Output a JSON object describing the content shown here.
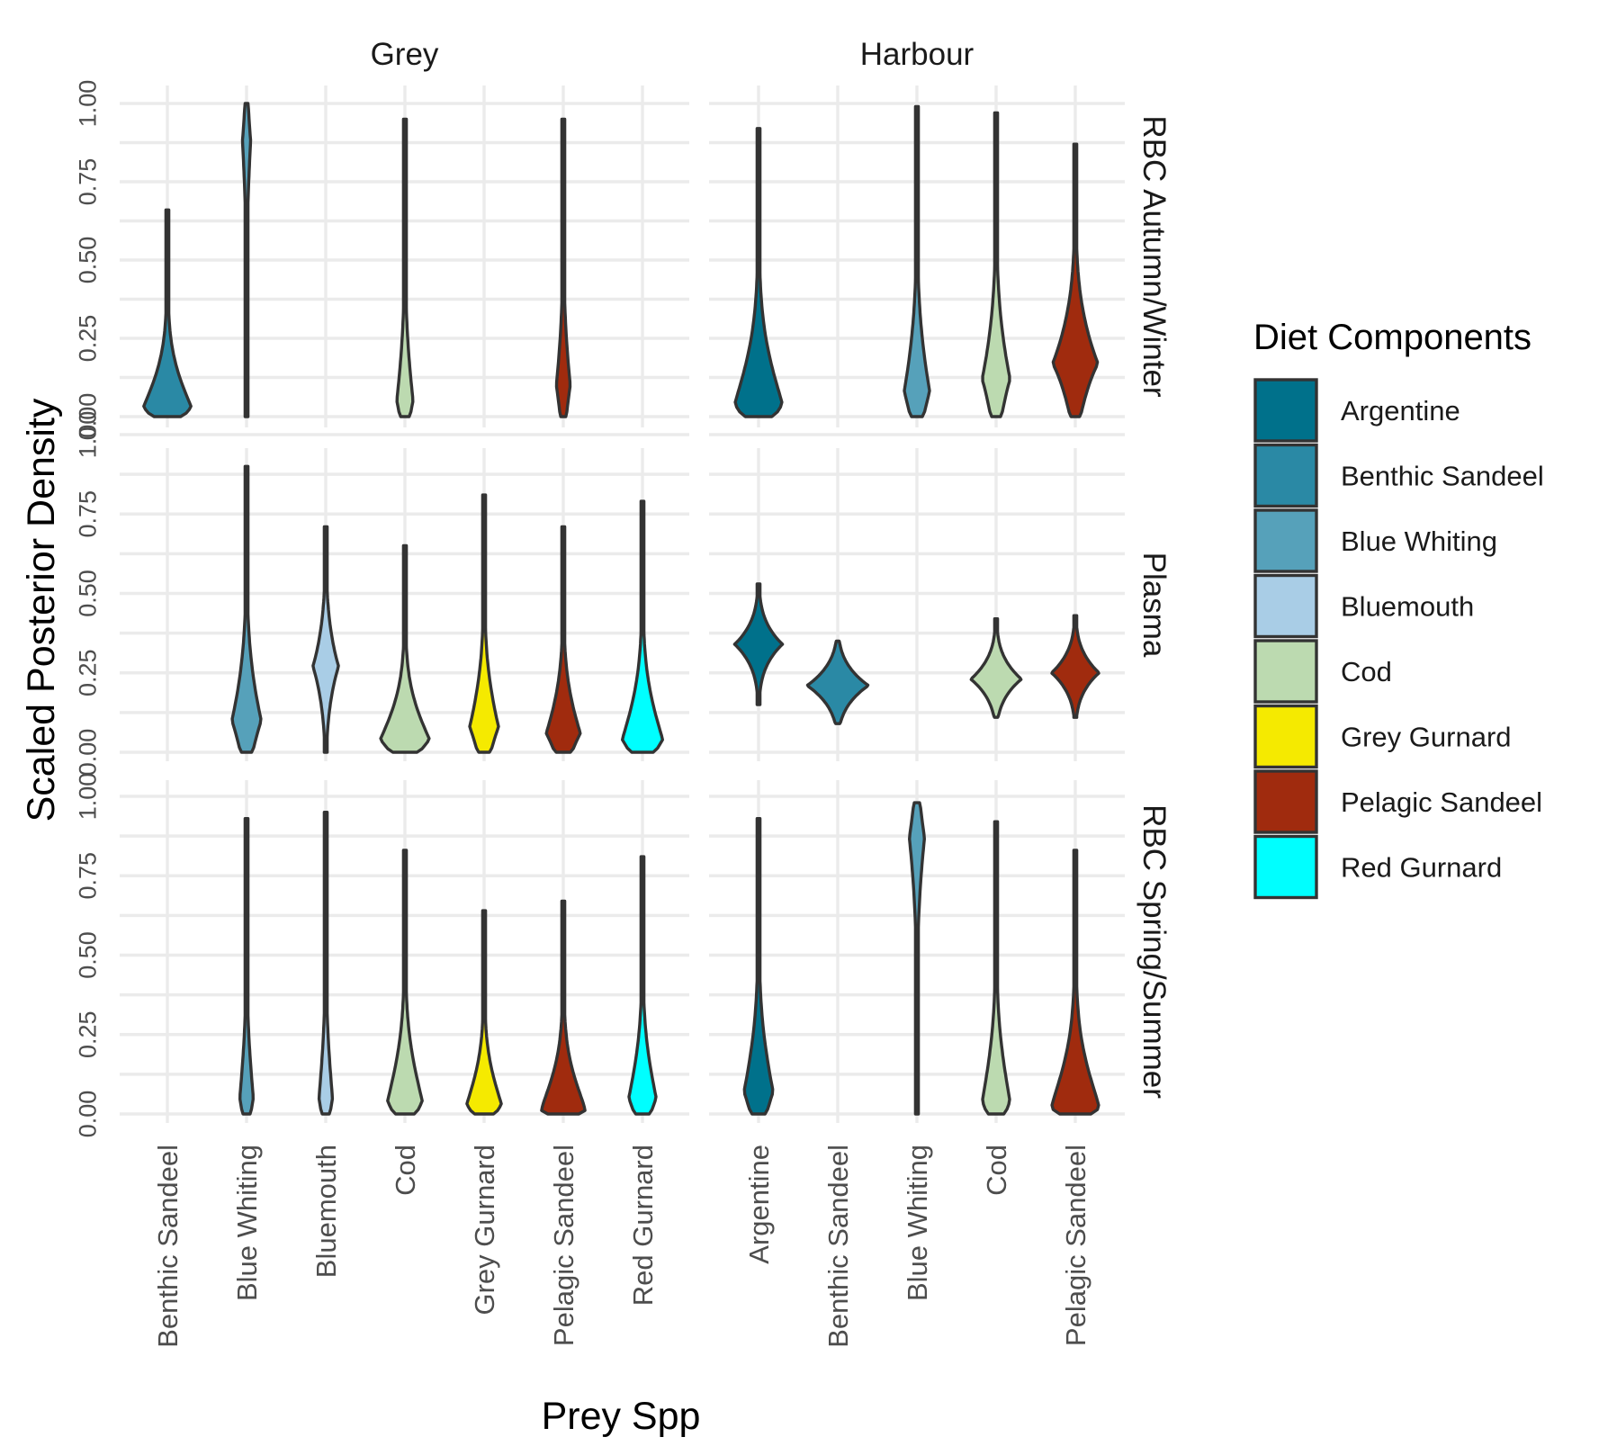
{
  "chart_data": {
    "type": "violin",
    "xlabel": "Prey Spp",
    "ylabel": "Scaled Posterior Density",
    "ylim": [
      0,
      1
    ],
    "y_ticks": [
      "0.00",
      "0.25",
      "0.50",
      "0.75",
      "1.00"
    ],
    "grid": true,
    "facet_columns": [
      "Grey",
      "Harbour"
    ],
    "facet_rows": [
      "RBC Autumn/Winter",
      "Plasma",
      "RBC Spring/Summer"
    ],
    "x_categories": {
      "Grey": [
        "Benthic Sandeel",
        "Blue Whiting",
        "Bluemouth",
        "Cod",
        "Grey Gurnard",
        "Pelagic Sandeel",
        "Red Gurnard"
      ],
      "Harbour": [
        "Argentine",
        "Benthic Sandeel",
        "Blue Whiting",
        "Cod",
        "Pelagic Sandeel"
      ]
    },
    "legend": {
      "title": "Diet Components",
      "position": "right",
      "items": [
        {
          "label": "Argentine",
          "color": "#00718B"
        },
        {
          "label": "Benthic Sandeel",
          "color": "#2A89A5"
        },
        {
          "label": "Blue Whiting",
          "color": "#56A1BA"
        },
        {
          "label": "Bluemouth",
          "color": "#A9CDE6"
        },
        {
          "label": "Cod",
          "color": "#BCDAB0"
        },
        {
          "label": "Grey Gurnard",
          "color": "#F5EA00"
        },
        {
          "label": "Pelagic Sandeel",
          "color": "#A02B0E"
        },
        {
          "label": "Red Gurnard",
          "color": "#00FFFF"
        }
      ]
    },
    "violins": [
      {
        "seal": "Grey",
        "tissue": "RBC Autumn/Winter",
        "prey": "Benthic Sandeel",
        "min": 0.0,
        "max": 0.66,
        "mode": 0.03,
        "width": 0.9
      },
      {
        "seal": "Grey",
        "tissue": "RBC Autumn/Winter",
        "prey": "Blue Whiting",
        "min": 0.0,
        "max": 1.0,
        "mode": 0.88,
        "width": 0.14
      },
      {
        "seal": "Grey",
        "tissue": "RBC Autumn/Winter",
        "prey": "Cod",
        "min": 0.0,
        "max": 0.95,
        "mode": 0.05,
        "width": 0.3
      },
      {
        "seal": "Grey",
        "tissue": "RBC Autumn/Winter",
        "prey": "Pelagic Sandeel",
        "min": 0.0,
        "max": 0.95,
        "mode": 0.1,
        "width": 0.24
      },
      {
        "seal": "Grey",
        "tissue": "Plasma",
        "prey": "Blue Whiting",
        "min": 0.0,
        "max": 0.9,
        "mode": 0.1,
        "width": 0.5
      },
      {
        "seal": "Grey",
        "tissue": "Plasma",
        "prey": "Bluemouth",
        "min": 0.0,
        "max": 0.71,
        "mode": 0.27,
        "width": 0.38
      },
      {
        "seal": "Grey",
        "tissue": "Plasma",
        "prey": "Cod",
        "min": 0.0,
        "max": 0.65,
        "mode": 0.04,
        "width": 0.9
      },
      {
        "seal": "Grey",
        "tissue": "Plasma",
        "prey": "Grey Gurnard",
        "min": 0.0,
        "max": 0.81,
        "mode": 0.08,
        "width": 0.5
      },
      {
        "seal": "Grey",
        "tissue": "Plasma",
        "prey": "Pelagic Sandeel",
        "min": 0.0,
        "max": 0.71,
        "mode": 0.06,
        "width": 0.6
      },
      {
        "seal": "Grey",
        "tissue": "Plasma",
        "prey": "Red Gurnard",
        "min": 0.0,
        "max": 0.79,
        "mode": 0.04,
        "width": 0.75
      },
      {
        "seal": "Grey",
        "tissue": "RBC Spring/Summer",
        "prey": "Blue Whiting",
        "min": 0.0,
        "max": 0.93,
        "mode": 0.05,
        "width": 0.25
      },
      {
        "seal": "Grey",
        "tissue": "RBC Spring/Summer",
        "prey": "Bluemouth",
        "min": 0.0,
        "max": 0.95,
        "mode": 0.05,
        "width": 0.25
      },
      {
        "seal": "Grey",
        "tissue": "RBC Spring/Summer",
        "prey": "Cod",
        "min": 0.0,
        "max": 0.83,
        "mode": 0.04,
        "width": 0.65
      },
      {
        "seal": "Grey",
        "tissue": "RBC Spring/Summer",
        "prey": "Grey Gurnard",
        "min": 0.0,
        "max": 0.64,
        "mode": 0.03,
        "width": 0.65
      },
      {
        "seal": "Grey",
        "tissue": "RBC Spring/Summer",
        "prey": "Pelagic Sandeel",
        "min": 0.0,
        "max": 0.67,
        "mode": 0.01,
        "width": 0.9
      },
      {
        "seal": "Grey",
        "tissue": "RBC Spring/Summer",
        "prey": "Red Gurnard",
        "min": 0.0,
        "max": 0.81,
        "mode": 0.05,
        "width": 0.5
      },
      {
        "seal": "Harbour",
        "tissue": "RBC Autumn/Winter",
        "prey": "Argentine",
        "min": 0.0,
        "max": 0.92,
        "mode": 0.04,
        "width": 0.9
      },
      {
        "seal": "Harbour",
        "tissue": "RBC Autumn/Winter",
        "prey": "Blue Whiting",
        "min": 0.0,
        "max": 0.99,
        "mode": 0.08,
        "width": 0.45
      },
      {
        "seal": "Harbour",
        "tissue": "RBC Autumn/Winter",
        "prey": "Cod",
        "min": 0.0,
        "max": 0.97,
        "mode": 0.12,
        "width": 0.47
      },
      {
        "seal": "Harbour",
        "tissue": "RBC Autumn/Winter",
        "prey": "Pelagic Sandeel",
        "min": 0.0,
        "max": 0.87,
        "mode": 0.17,
        "width": 0.72
      },
      {
        "seal": "Harbour",
        "tissue": "Plasma",
        "prey": "Argentine",
        "min": 0.15,
        "max": 0.53,
        "mode": 0.34,
        "width": 0.7
      },
      {
        "seal": "Harbour",
        "tissue": "Plasma",
        "prey": "Benthic Sandeel",
        "min": 0.09,
        "max": 0.35,
        "mode": 0.21,
        "width": 0.9
      },
      {
        "seal": "Harbour",
        "tissue": "Plasma",
        "prey": "Cod",
        "min": 0.11,
        "max": 0.42,
        "mode": 0.23,
        "width": 0.75
      },
      {
        "seal": "Harbour",
        "tissue": "Plasma",
        "prey": "Pelagic Sandeel",
        "min": 0.11,
        "max": 0.43,
        "mode": 0.25,
        "width": 0.7
      },
      {
        "seal": "Harbour",
        "tissue": "RBC Spring/Summer",
        "prey": "Argentine",
        "min": 0.0,
        "max": 0.93,
        "mode": 0.07,
        "width": 0.52
      },
      {
        "seal": "Harbour",
        "tissue": "RBC Spring/Summer",
        "prey": "Blue Whiting",
        "min": 0.0,
        "max": 0.98,
        "mode": 0.87,
        "width": 0.26
      },
      {
        "seal": "Harbour",
        "tissue": "RBC Spring/Summer",
        "prey": "Cod",
        "min": 0.0,
        "max": 0.92,
        "mode": 0.04,
        "width": 0.52
      },
      {
        "seal": "Harbour",
        "tissue": "RBC Spring/Summer",
        "prey": "Pelagic Sandeel",
        "min": 0.0,
        "max": 0.83,
        "mode": 0.02,
        "width": 0.95
      }
    ]
  }
}
